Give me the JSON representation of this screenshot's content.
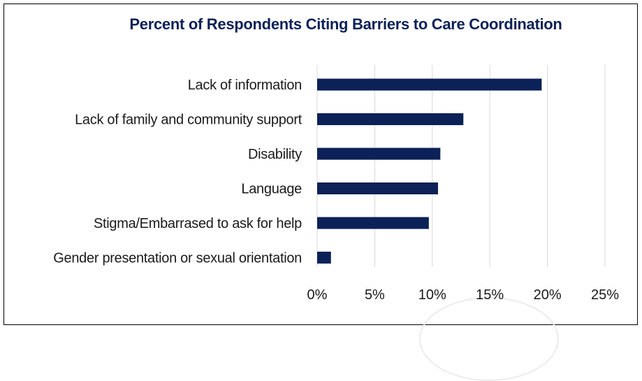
{
  "chart_data": {
    "type": "bar",
    "orientation": "horizontal",
    "title": "Percent of Respondents Citing Barriers to Care Coordination",
    "categories": [
      "Lack of information",
      "Lack of family and community support",
      "Disability",
      "Language",
      "Stigma/Embarrased to ask for help",
      "Gender presentation or sexual orientation"
    ],
    "values": [
      19.5,
      12.7,
      10.7,
      10.5,
      9.7,
      1.2
    ],
    "unit": "%",
    "xlim": [
      0,
      25
    ],
    "x_ticks": [
      0,
      5,
      10,
      15,
      20,
      25
    ],
    "x_tick_labels": [
      "0%",
      "5%",
      "10%",
      "15%",
      "20%",
      "25%"
    ],
    "xlabel": "",
    "ylabel": "",
    "grid": "vertical",
    "legend": "none",
    "colors": {
      "bar": "#0c2157",
      "title": "#0c2157",
      "grid": "#d9d9d9",
      "text": "#1a1a1a"
    }
  }
}
